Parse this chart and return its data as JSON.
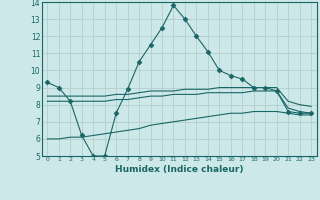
{
  "xlabel": "Humidex (Indice chaleur)",
  "ylabel": "",
  "background_color": "#cce8e8",
  "grid_color": "#b0c8c8",
  "line_color": "#1a6666",
  "xlim": [
    -0.5,
    23.5
  ],
  "ylim": [
    5,
    14
  ],
  "ytick_values": [
    5,
    6,
    7,
    8,
    9,
    10,
    11,
    12,
    13,
    14
  ],
  "series": [
    {
      "x": [
        0,
        1,
        2,
        3,
        4,
        5,
        6,
        7,
        8,
        9,
        10,
        11,
        12,
        13,
        14,
        15,
        16,
        17,
        18,
        19,
        20,
        21,
        22,
        23
      ],
      "y": [
        9.3,
        9.0,
        8.2,
        6.2,
        5.0,
        5.0,
        7.5,
        8.9,
        10.5,
        11.5,
        12.5,
        13.8,
        13.0,
        12.0,
        11.1,
        10.0,
        9.7,
        9.5,
        9.0,
        9.0,
        8.8,
        7.6,
        7.5,
        7.5
      ],
      "marker": "D",
      "markersize": 2.5
    },
    {
      "x": [
        0,
        1,
        2,
        3,
        4,
        5,
        6,
        7,
        8,
        9,
        10,
        11,
        12,
        13,
        14,
        15,
        16,
        17,
        18,
        19,
        20,
        21,
        22,
        23
      ],
      "y": [
        8.2,
        8.2,
        8.2,
        8.2,
        8.2,
        8.2,
        8.3,
        8.3,
        8.4,
        8.5,
        8.5,
        8.6,
        8.6,
        8.6,
        8.7,
        8.7,
        8.7,
        8.7,
        8.8,
        8.8,
        8.8,
        7.8,
        7.6,
        7.5
      ],
      "marker": null,
      "markersize": 0
    },
    {
      "x": [
        0,
        1,
        2,
        3,
        4,
        5,
        6,
        7,
        8,
        9,
        10,
        11,
        12,
        13,
        14,
        15,
        16,
        17,
        18,
        19,
        20,
        21,
        22,
        23
      ],
      "y": [
        8.5,
        8.5,
        8.5,
        8.5,
        8.5,
        8.5,
        8.6,
        8.6,
        8.7,
        8.8,
        8.8,
        8.8,
        8.9,
        8.9,
        8.9,
        9.0,
        9.0,
        9.0,
        9.0,
        9.0,
        9.0,
        8.2,
        8.0,
        7.9
      ],
      "marker": null,
      "markersize": 0
    },
    {
      "x": [
        0,
        1,
        2,
        3,
        4,
        5,
        6,
        7,
        8,
        9,
        10,
        11,
        12,
        13,
        14,
        15,
        16,
        17,
        18,
        19,
        20,
        21,
        22,
        23
      ],
      "y": [
        6.0,
        6.0,
        6.1,
        6.1,
        6.2,
        6.3,
        6.4,
        6.5,
        6.6,
        6.8,
        6.9,
        7.0,
        7.1,
        7.2,
        7.3,
        7.4,
        7.5,
        7.5,
        7.6,
        7.6,
        7.6,
        7.5,
        7.4,
        7.4
      ],
      "marker": null,
      "markersize": 0
    }
  ]
}
